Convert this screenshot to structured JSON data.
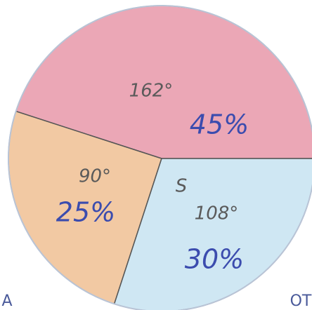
{
  "chart_data": {
    "type": "pie",
    "values": [
      45,
      25,
      30
    ],
    "value_labels": [
      "45%",
      "25%",
      "30%"
    ],
    "angle_labels": [
      "162°",
      "90°",
      "108°"
    ],
    "colors": [
      "#eba7b6",
      "#f2c9a3",
      "#cfe7f3"
    ],
    "annotations": [
      "S",
      "A",
      "OT"
    ]
  }
}
